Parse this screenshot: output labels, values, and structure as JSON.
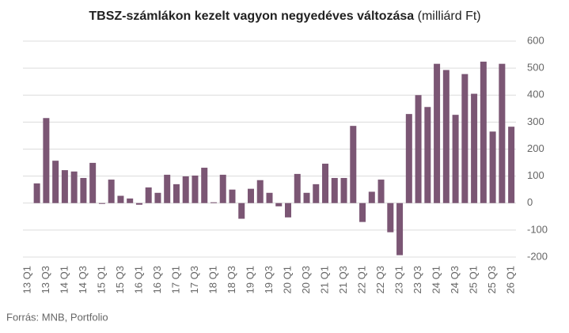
{
  "chart_data": {
    "type": "bar",
    "title": "TBSZ-számlákon kezelt vagyon negyedéves változása",
    "subtitle": "(milliárd Ft)",
    "source": "Forrás: MNB, Portfolio",
    "categories": [
      "13 Q1",
      null,
      "13 Q3",
      null,
      "14 Q1",
      null,
      "14 Q3",
      null,
      "15 Q1",
      null,
      "15 Q3",
      null,
      "16 Q1",
      null,
      "16 Q3",
      null,
      "17 Q1",
      null,
      "17 Q3",
      null,
      "18 Q1",
      null,
      "18 Q3",
      null,
      "19 Q1",
      null,
      "19 Q3",
      null,
      "20 Q1",
      null,
      "20 Q3",
      null,
      "21 Q1",
      null,
      "21 Q3",
      null,
      "22 Q1",
      null,
      "22 Q3",
      null,
      "23 Q1",
      null,
      "23 Q3",
      null,
      "24 Q1",
      null,
      "24 Q3",
      null,
      "25 Q1",
      null,
      "25 Q3",
      null,
      "26 Q1"
    ],
    "values": [
      null,
      73,
      315,
      157,
      122,
      117,
      93,
      149,
      -3,
      87,
      27,
      17,
      -6,
      58,
      38,
      105,
      70,
      99,
      102,
      131,
      3,
      105,
      50,
      -58,
      53,
      85,
      38,
      -12,
      -53,
      108,
      38,
      70,
      146,
      93,
      93,
      286,
      -70,
      42,
      87,
      -108,
      -193,
      330,
      400,
      356,
      516,
      493,
      327,
      478,
      405,
      524,
      265,
      516,
      283
    ],
    "color": "#7b5674",
    "ylim": [
      -200,
      600
    ],
    "yticks": [
      -200,
      -100,
      0,
      100,
      200,
      300,
      400,
      500,
      600
    ],
    "grid": true
  }
}
